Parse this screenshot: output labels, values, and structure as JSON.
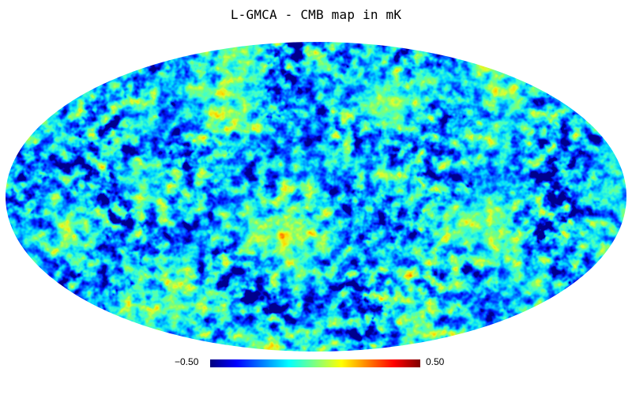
{
  "title": "L-GMCA - CMB map in mK",
  "projection": "mollweide",
  "colormap": {
    "name": "jet",
    "stops": [
      "#00007f",
      "#0000ff",
      "#007fff",
      "#00ffff",
      "#7fff7f",
      "#ffff00",
      "#ff7f00",
      "#ff0000",
      "#7f0000"
    ]
  },
  "colorbar": {
    "min_label": "−0.50",
    "max_label": "0.50",
    "min_value": -0.5,
    "max_value": 0.5,
    "unit": "mK"
  }
}
